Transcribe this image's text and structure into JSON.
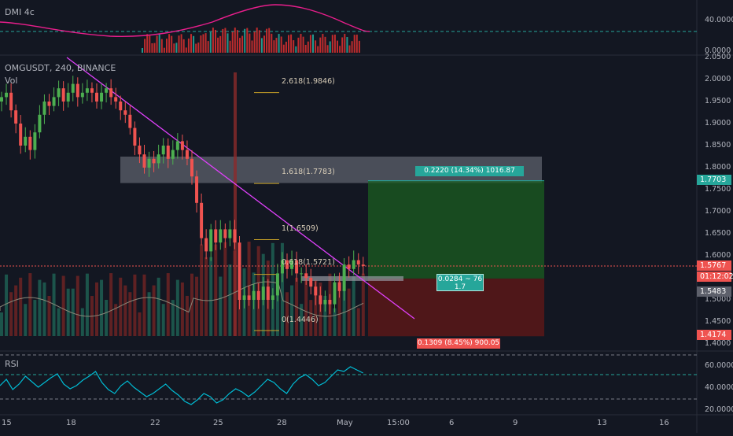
{
  "symbol": {
    "title": "OMGUSDT, 240, BINANCE",
    "volume_label": "Vol"
  },
  "panes": {
    "dmi_title": "DMI 4c",
    "rsi_title": "RSI"
  },
  "dmi_axis": [
    "40.0000",
    "0.0000"
  ],
  "rsi_axis": [
    "60.0000",
    "40.0000",
    "20.0000"
  ],
  "price_axis": [
    "2.0500",
    "2.0000",
    "1.9500",
    "1.9000",
    "1.8500",
    "1.8000",
    "1.7500",
    "1.7000",
    "1.6500",
    "1.6000",
    "1.5500",
    "1.5000",
    "1.4500",
    "1.4000"
  ],
  "price_tags": {
    "target": "1.7703",
    "last": "1.5767",
    "countdown": "01:12:02",
    "avg": "1.5483",
    "stop": "1.4174"
  },
  "x_axis": [
    "15",
    "18",
    "22",
    "25",
    "28",
    "May",
    "15:00",
    "6",
    "9",
    "13",
    "16"
  ],
  "fib_levels": [
    {
      "label": "2.618(1.9846)",
      "price": 1.9846
    },
    {
      "label": "1.618(1.7783)",
      "price": 1.7783
    },
    {
      "label": "1(1.6509)",
      "price": 1.6509
    },
    {
      "label": "0.618(1.5721)",
      "price": 1.5721
    },
    {
      "label": "0(1.4446)",
      "price": 1.4446
    }
  ],
  "position": {
    "target_label": "0.2220 (14.34%) 1016.87",
    "entry_label": "0.0284 ~ 76",
    "ratio_label": "1.7",
    "stop_label": "0.1309 (8.45%) 900.05"
  },
  "colors": {
    "up": "#26a69a",
    "down": "#ef5350",
    "trend": "#e040fb",
    "dmi_line": "#e91e8c",
    "rsi_line": "#00bcd4"
  },
  "chart_data": {
    "type": "candlestick",
    "title": "OMGUSDT, 240, BINANCE",
    "y_range": [
      1.4,
      2.05
    ],
    "entry_price": 1.5483,
    "target_price": 1.7703,
    "stop_price": 1.4174,
    "last_price": 1.5767,
    "resistance_zone": [
      1.765,
      1.825
    ],
    "candles_close": [
      1.96,
      1.97,
      1.93,
      1.9,
      1.85,
      1.87,
      1.84,
      1.88,
      1.92,
      1.95,
      1.94,
      1.96,
      1.98,
      1.95,
      1.97,
      1.99,
      1.96,
      1.97,
      1.98,
      1.97,
      1.95,
      1.97,
      1.98,
      1.96,
      1.95,
      1.93,
      1.92,
      1.89,
      1.85,
      1.83,
      1.8,
      1.82,
      1.81,
      1.83,
      1.85,
      1.82,
      1.84,
      1.86,
      1.84,
      1.82,
      1.78,
      1.72,
      1.64,
      1.61,
      1.66,
      1.63,
      1.66,
      1.64,
      1.66,
      1.63,
      1.5,
      1.51,
      1.5,
      1.52,
      1.5,
      1.53,
      1.5,
      1.51,
      1.56,
      1.59,
      1.57,
      1.59,
      1.56,
      1.56,
      1.55,
      1.53,
      1.51,
      1.49,
      1.5,
      1.49,
      1.54,
      1.52,
      1.58,
      1.57,
      1.59,
      1.58,
      1.5767
    ],
    "rsi_levels": [
      70,
      50,
      30
    ]
  }
}
